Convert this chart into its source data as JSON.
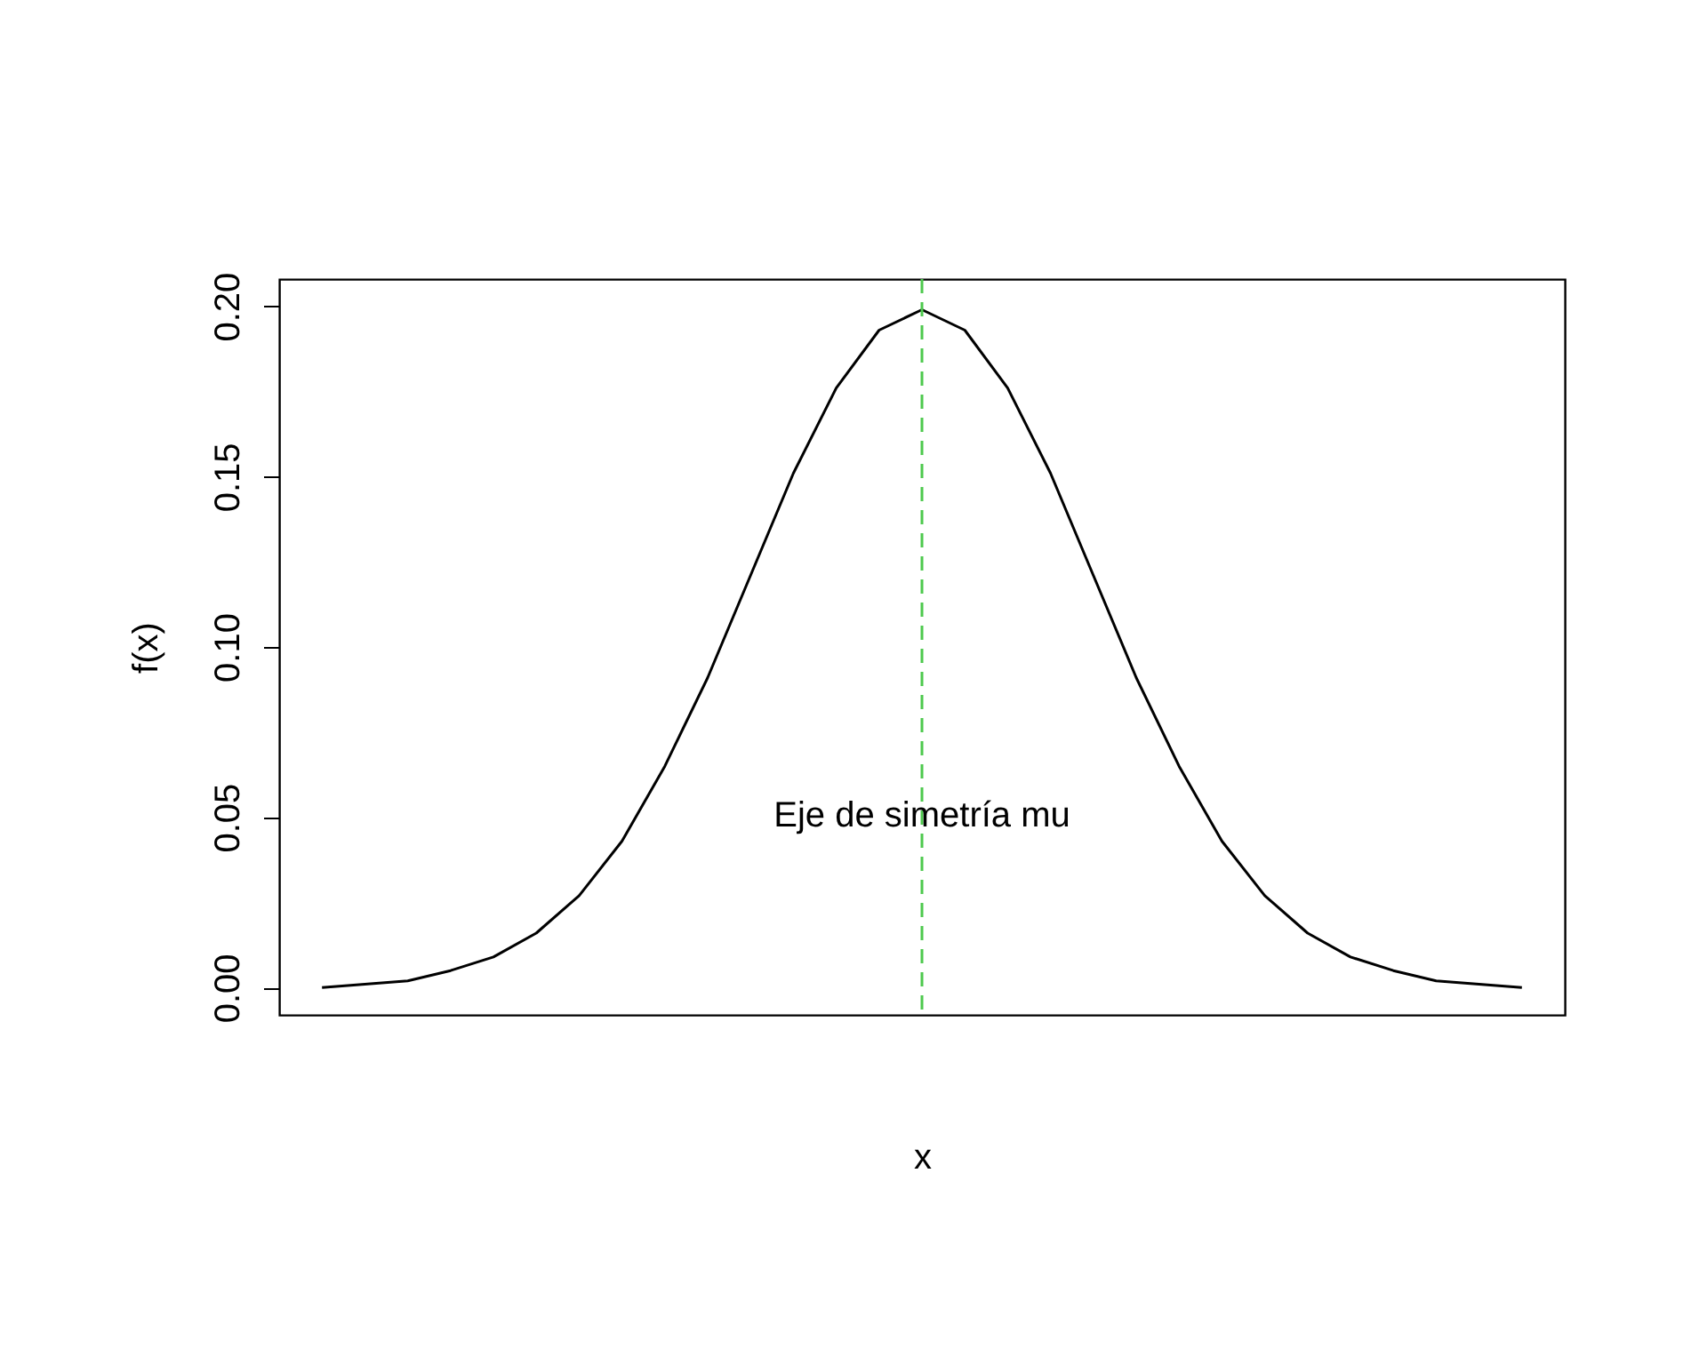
{
  "chart_data": {
    "type": "line",
    "xlabel": "x",
    "ylabel": "f(x)",
    "categories": [
      null,
      null,
      null,
      null,
      null,
      null,
      null,
      null,
      null,
      null,
      null,
      null,
      null,
      null,
      null,
      null,
      null,
      null,
      null,
      null,
      null,
      null,
      null,
      null,
      null,
      null,
      null,
      null,
      null
    ],
    "series": [
      {
        "color": "#000000",
        "values": [
          0.0,
          0.001,
          0.002,
          0.005,
          0.009,
          0.016,
          0.027,
          0.043,
          0.065,
          0.091,
          0.121,
          0.151,
          0.176,
          0.193,
          0.199,
          0.193,
          0.176,
          0.151,
          0.121,
          0.091,
          0.065,
          0.043,
          0.027,
          0.016,
          0.009,
          0.005,
          0.002,
          0.001,
          0.0
        ]
      }
    ],
    "ylim": [
      -0.008,
      0.208
    ],
    "yticks": [
      {
        "value": 0,
        "label": "0.00"
      },
      {
        "value": 0.05,
        "label": "0.05"
      },
      {
        "value": 0.1,
        "label": "0.10"
      },
      {
        "value": 0.15,
        "label": "0.15"
      },
      {
        "value": 0.2,
        "label": "0.20"
      }
    ],
    "tick_labels": "y",
    "grid": false,
    "marker": "none",
    "line_style": "solid",
    "annotations": [
      "Eje de simetría mu"
    ]
  }
}
